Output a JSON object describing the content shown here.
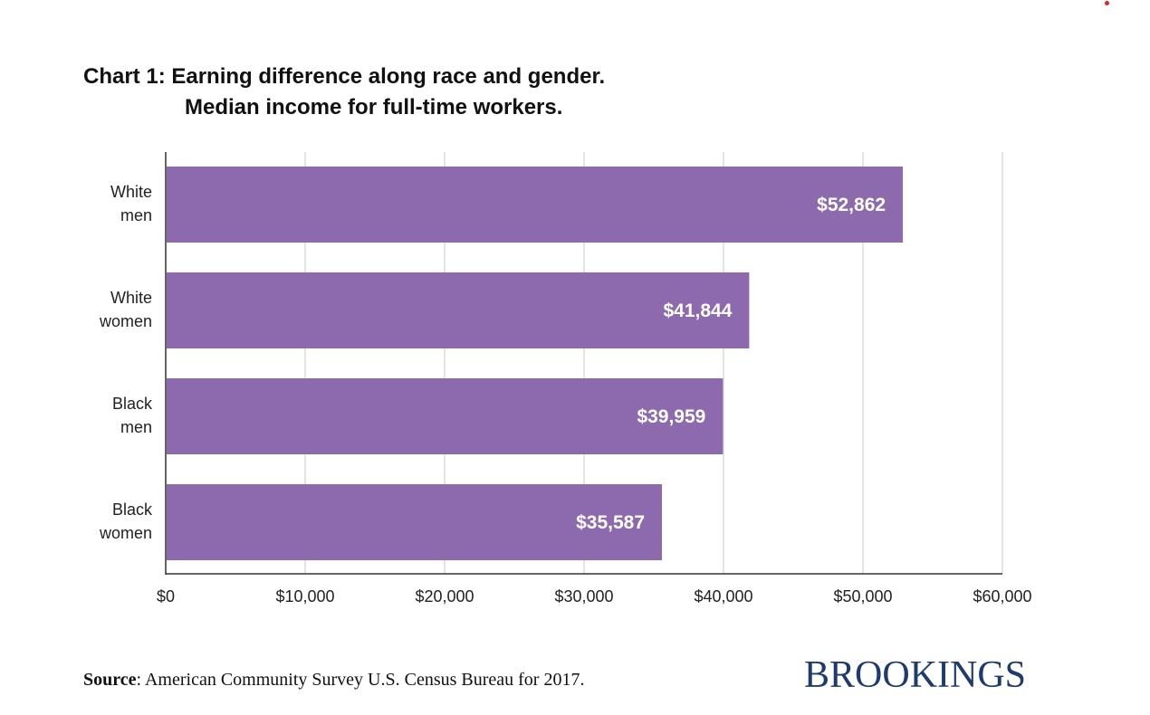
{
  "title": {
    "line1": "Chart 1: Earning difference along race and gender.",
    "line2": "Median income for full-time workers."
  },
  "source": {
    "key": "Source",
    "text": ": American Community Survey U.S. Census Bureau for 2017."
  },
  "brand": "BROOKINGS",
  "colors": {
    "bar": "#8c6aad",
    "grid": "#dcdcdc",
    "axis": "#333333",
    "brand": "#1f3a6e"
  },
  "chart_data": {
    "type": "bar",
    "orientation": "horizontal",
    "title": "Chart 1: Earning difference along race and gender. Median income for full-time workers.",
    "categories": [
      [
        "White",
        "men"
      ],
      [
        "White",
        "women"
      ],
      [
        "Black",
        "men"
      ],
      [
        "Black",
        "women"
      ]
    ],
    "values": [
      52862,
      41844,
      39959,
      35587
    ],
    "value_labels": [
      "$52,862",
      "$41,844",
      "$39,959",
      "$35,587"
    ],
    "xlim": [
      0,
      60000
    ],
    "xticks": [
      0,
      10000,
      20000,
      30000,
      40000,
      50000,
      60000
    ],
    "xtick_labels": [
      "$0",
      "$10,000",
      "$20,000",
      "$30,000",
      "$40,000",
      "$50,000",
      "$60,000"
    ],
    "grid": true
  }
}
